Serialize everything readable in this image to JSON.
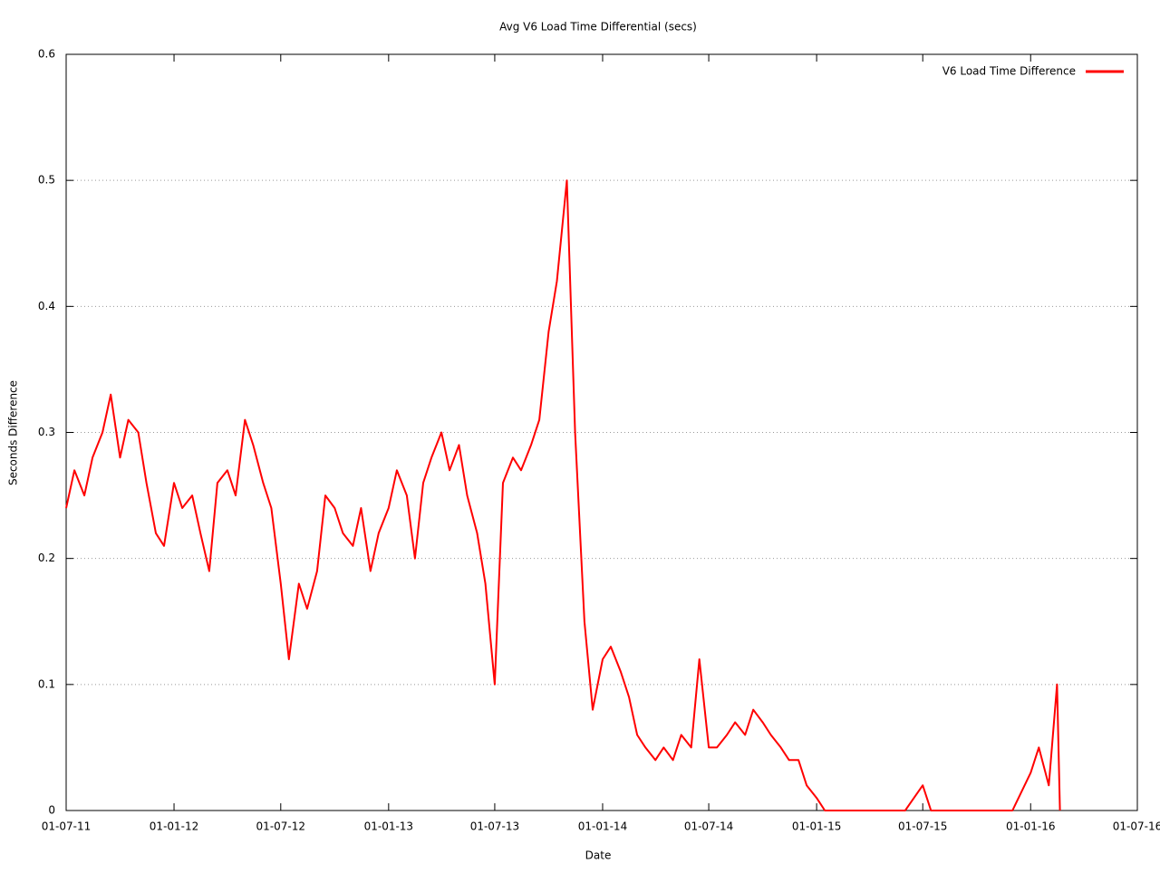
{
  "chart_data": {
    "type": "line",
    "title": "Avg V6 Load Time Differential (secs)",
    "x_label": "Date",
    "y_label": "Seconds Difference",
    "x": [
      "2011-07-01",
      "2011-07-15",
      "2011-08-01",
      "2011-08-15",
      "2011-09-01",
      "2011-09-15",
      "2011-10-01",
      "2011-10-15",
      "2011-11-01",
      "2011-11-15",
      "2011-12-01",
      "2011-12-15",
      "2012-01-01",
      "2012-01-15",
      "2012-02-01",
      "2012-02-15",
      "2012-03-01",
      "2012-03-15",
      "2012-04-01",
      "2012-04-15",
      "2012-05-01",
      "2012-05-15",
      "2012-06-01",
      "2012-06-15",
      "2012-07-01",
      "2012-07-15",
      "2012-08-01",
      "2012-08-15",
      "2012-09-01",
      "2012-09-15",
      "2012-10-01",
      "2012-10-15",
      "2012-11-01",
      "2012-11-15",
      "2012-12-01",
      "2012-12-15",
      "2013-01-01",
      "2013-01-15",
      "2013-02-01",
      "2013-02-15",
      "2013-03-01",
      "2013-03-15",
      "2013-04-01",
      "2013-04-15",
      "2013-05-01",
      "2013-05-15",
      "2013-06-01",
      "2013-06-15",
      "2013-07-01",
      "2013-07-15",
      "2013-08-01",
      "2013-08-15",
      "2013-09-01",
      "2013-09-15",
      "2013-10-01",
      "2013-10-15",
      "2013-11-01",
      "2013-11-15",
      "2013-12-01",
      "2013-12-15",
      "2014-01-01",
      "2014-01-15",
      "2014-02-01",
      "2014-02-15",
      "2014-03-01",
      "2014-03-15",
      "2014-04-01",
      "2014-04-15",
      "2014-05-01",
      "2014-05-15",
      "2014-06-01",
      "2014-06-15",
      "2014-07-01",
      "2014-07-15",
      "2014-08-01",
      "2014-08-15",
      "2014-09-01",
      "2014-09-15",
      "2014-10-01",
      "2014-10-15",
      "2014-11-01",
      "2014-11-15",
      "2014-12-01",
      "2014-12-15",
      "2015-01-01",
      "2015-01-15",
      "2015-02-01",
      "2015-03-01",
      "2015-04-01",
      "2015-05-01",
      "2015-06-01",
      "2015-07-01",
      "2015-07-15",
      "2015-08-01",
      "2015-09-01",
      "2015-10-01",
      "2015-11-01",
      "2015-12-01",
      "2016-01-01",
      "2016-01-15",
      "2016-02-01",
      "2016-02-15",
      "2016-02-20"
    ],
    "series": [
      {
        "name": "V6 Load Time Difference",
        "color": "#ff0000",
        "values": [
          0.24,
          0.27,
          0.25,
          0.28,
          0.3,
          0.33,
          0.28,
          0.31,
          0.3,
          0.26,
          0.22,
          0.21,
          0.26,
          0.24,
          0.25,
          0.22,
          0.19,
          0.26,
          0.27,
          0.25,
          0.31,
          0.29,
          0.26,
          0.24,
          0.18,
          0.12,
          0.18,
          0.16,
          0.19,
          0.25,
          0.24,
          0.22,
          0.21,
          0.24,
          0.19,
          0.22,
          0.24,
          0.27,
          0.25,
          0.2,
          0.26,
          0.28,
          0.3,
          0.27,
          0.29,
          0.25,
          0.22,
          0.18,
          0.1,
          0.26,
          0.28,
          0.27,
          0.29,
          0.31,
          0.38,
          0.42,
          0.5,
          0.3,
          0.15,
          0.08,
          0.12,
          0.13,
          0.11,
          0.09,
          0.06,
          0.05,
          0.04,
          0.05,
          0.04,
          0.06,
          0.05,
          0.12,
          0.05,
          0.05,
          0.06,
          0.07,
          0.06,
          0.08,
          0.07,
          0.06,
          0.05,
          0.04,
          0.04,
          0.02,
          0.01,
          0,
          0,
          0,
          0,
          0,
          0,
          0.02,
          0,
          0,
          0,
          0,
          0,
          0,
          0.03,
          0.05,
          0.02,
          0.1,
          0
        ]
      }
    ],
    "xlim": [
      "2011-07-01",
      "2016-07-01"
    ],
    "xticks": [
      {
        "value": "2011-07-01",
        "label": "01-07-11"
      },
      {
        "value": "2012-01-01",
        "label": "01-01-12"
      },
      {
        "value": "2012-07-01",
        "label": "01-07-12"
      },
      {
        "value": "2013-01-01",
        "label": "01-01-13"
      },
      {
        "value": "2013-07-01",
        "label": "01-07-13"
      },
      {
        "value": "2014-01-01",
        "label": "01-01-14"
      },
      {
        "value": "2014-07-01",
        "label": "01-07-14"
      },
      {
        "value": "2015-01-01",
        "label": "01-01-15"
      },
      {
        "value": "2015-07-01",
        "label": "01-07-15"
      },
      {
        "value": "2016-01-01",
        "label": "01-01-16"
      },
      {
        "value": "2016-07-01",
        "label": "01-07-16"
      }
    ],
    "ylim": [
      0,
      0.6
    ],
    "yticks": [
      0,
      0.1,
      0.2,
      0.3,
      0.4,
      0.5,
      0.6
    ],
    "grid": true,
    "legend": "top-right"
  }
}
